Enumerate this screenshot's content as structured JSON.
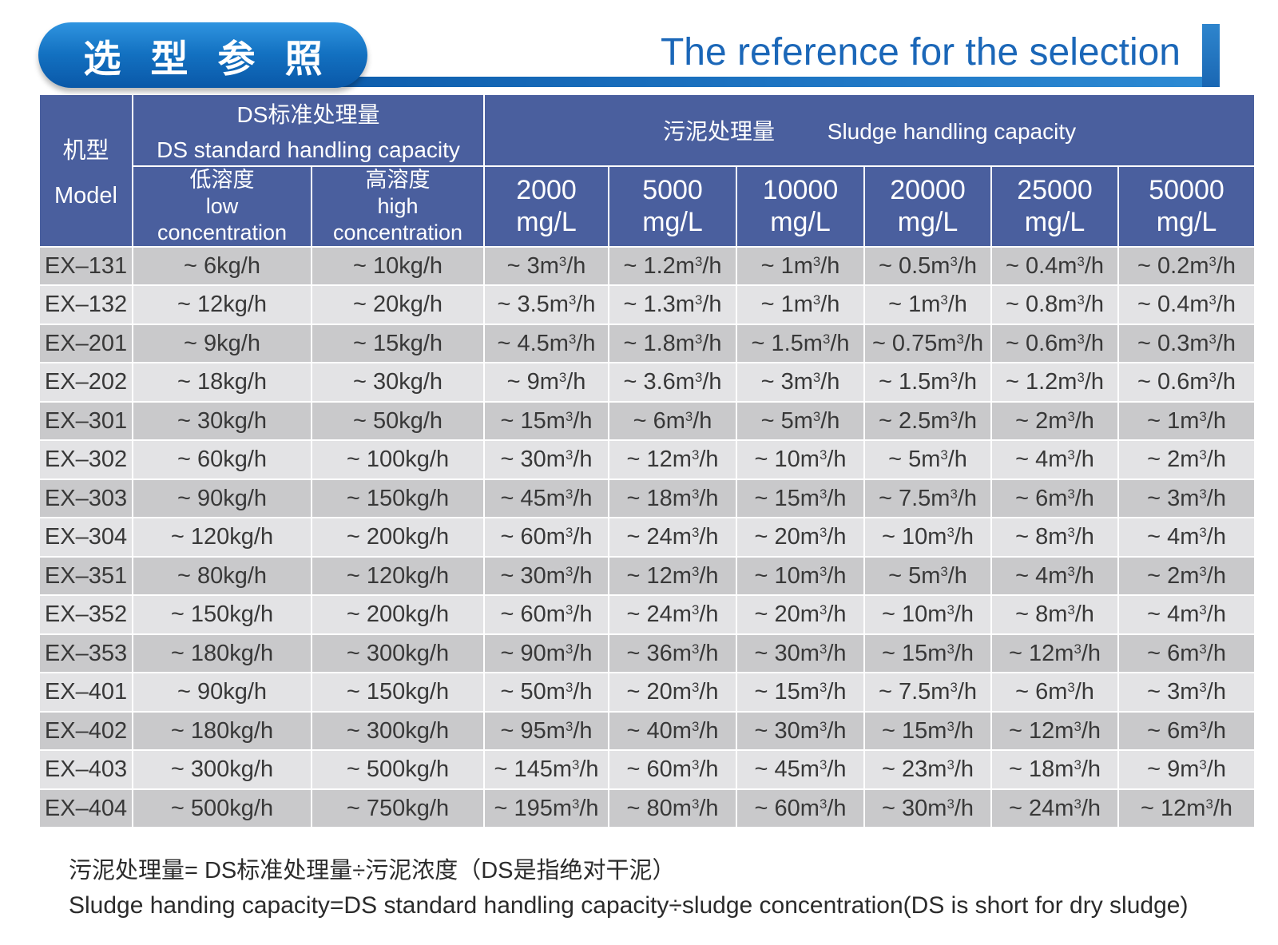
{
  "header": {
    "badge_title": "选 型 参 照",
    "title_en": "The reference for the selection"
  },
  "colors": {
    "badge_gradient_top": "#2f94e0",
    "badge_gradient_bottom": "#0a58a8",
    "title_blue": "#1b67b8",
    "table_header_blue": "#4a5f9e",
    "row_dark": "#c9c9cb",
    "row_light": "#e3e3e5",
    "cell_text": "#383838"
  },
  "table": {
    "model_header": {
      "zh": "机型",
      "en": "Model"
    },
    "ds_group": {
      "zh": "DS标准处理量",
      "en": "DS standard handling capacity"
    },
    "sludge_group": {
      "zh": "污泥处理量",
      "en": "Sludge handling capacity"
    },
    "sub_headers": [
      {
        "zh": "低溶度",
        "en1": "low",
        "en2": "concentration"
      },
      {
        "zh": "高溶度",
        "en1": "high",
        "en2": "concentration"
      }
    ],
    "concentrations": [
      {
        "value": "2000",
        "unit": "mg/L"
      },
      {
        "value": "5000",
        "unit": "mg/L"
      },
      {
        "value": "10000",
        "unit": "mg/L"
      },
      {
        "value": "20000",
        "unit": "mg/L"
      },
      {
        "value": "25000",
        "unit": "mg/L"
      },
      {
        "value": "50000",
        "unit": "mg/L"
      }
    ],
    "rows": [
      {
        "model": "EX–131",
        "low": "~ 6kg/h",
        "high": "~ 10kg/h",
        "capacities": [
          "~ 3m³/h",
          "~ 1.2m³/h",
          "~ 1m³/h",
          "~ 0.5m³/h",
          "~ 0.4m³/h",
          "~ 0.2m³/h"
        ]
      },
      {
        "model": "EX–132",
        "low": "~ 12kg/h",
        "high": "~ 20kg/h",
        "capacities": [
          "~ 3.5m³/h",
          "~ 1.3m³/h",
          "~ 1m³/h",
          "~ 1m³/h",
          "~ 0.8m³/h",
          "~ 0.4m³/h"
        ]
      },
      {
        "model": "EX–201",
        "low": "~ 9kg/h",
        "high": "~ 15kg/h",
        "capacities": [
          "~ 4.5m³/h",
          "~ 1.8m³/h",
          "~ 1.5m³/h",
          "~ 0.75m³/h",
          "~ 0.6m³/h",
          "~ 0.3m³/h"
        ]
      },
      {
        "model": "EX–202",
        "low": "~ 18kg/h",
        "high": "~ 30kg/h",
        "capacities": [
          "~ 9m³/h",
          "~ 3.6m³/h",
          "~ 3m³/h",
          "~ 1.5m³/h",
          "~ 1.2m³/h",
          "~ 0.6m³/h"
        ]
      },
      {
        "model": "EX–301",
        "low": "~ 30kg/h",
        "high": "~ 50kg/h",
        "capacities": [
          "~ 15m³/h",
          "~ 6m³/h",
          "~ 5m³/h",
          "~ 2.5m³/h",
          "~ 2m³/h",
          "~ 1m³/h"
        ]
      },
      {
        "model": "EX–302",
        "low": "~ 60kg/h",
        "high": "~ 100kg/h",
        "capacities": [
          "~ 30m³/h",
          "~ 12m³/h",
          "~ 10m³/h",
          "~ 5m³/h",
          "~ 4m³/h",
          "~ 2m³/h"
        ]
      },
      {
        "model": "EX–303",
        "low": "~ 90kg/h",
        "high": "~ 150kg/h",
        "capacities": [
          "~ 45m³/h",
          "~ 18m³/h",
          "~ 15m³/h",
          "~ 7.5m³/h",
          "~ 6m³/h",
          "~ 3m³/h"
        ]
      },
      {
        "model": "EX–304",
        "low": "~ 120kg/h",
        "high": "~ 200kg/h",
        "capacities": [
          "~ 60m³/h",
          "~ 24m³/h",
          "~ 20m³/h",
          "~ 10m³/h",
          "~ 8m³/h",
          "~ 4m³/h"
        ]
      },
      {
        "model": "EX–351",
        "low": "~ 80kg/h",
        "high": "~ 120kg/h",
        "capacities": [
          "~ 30m³/h",
          "~ 12m³/h",
          "~ 10m³/h",
          "~ 5m³/h",
          "~ 4m³/h",
          "~ 2m³/h"
        ]
      },
      {
        "model": "EX–352",
        "low": "~ 150kg/h",
        "high": "~ 200kg/h",
        "capacities": [
          "~ 60m³/h",
          "~ 24m³/h",
          "~ 20m³/h",
          "~ 10m³/h",
          "~ 8m³/h",
          "~ 4m³/h"
        ]
      },
      {
        "model": "EX–353",
        "low": "~ 180kg/h",
        "high": "~ 300kg/h",
        "capacities": [
          "~ 90m³/h",
          "~ 36m³/h",
          "~ 30m³/h",
          "~ 15m³/h",
          "~ 12m³/h",
          "~ 6m³/h"
        ]
      },
      {
        "model": "EX–401",
        "low": "~ 90kg/h",
        "high": "~ 150kg/h",
        "capacities": [
          "~ 50m³/h",
          "~ 20m³/h",
          "~ 15m³/h",
          "~ 7.5m³/h",
          "~ 6m³/h",
          "~ 3m³/h"
        ]
      },
      {
        "model": "EX–402",
        "low": "~ 180kg/h",
        "high": "~ 300kg/h",
        "capacities": [
          "~ 95m³/h",
          "~ 40m³/h",
          "~ 30m³/h",
          "~ 15m³/h",
          "~ 12m³/h",
          "~ 6m³/h"
        ]
      },
      {
        "model": "EX–403",
        "low": "~ 300kg/h",
        "high": "~ 500kg/h",
        "capacities": [
          "~ 145m³/h",
          "~ 60m³/h",
          "~ 45m³/h",
          "~ 23m³/h",
          "~ 18m³/h",
          "~ 9m³/h"
        ]
      },
      {
        "model": "EX–404",
        "low": "~ 500kg/h",
        "high": "~ 750kg/h",
        "capacities": [
          "~ 195m³/h",
          "~ 80m³/h",
          "~ 60m³/h",
          "~ 30m³/h",
          "~ 24m³/h",
          "~ 12m³/h"
        ]
      }
    ]
  },
  "footnotes": {
    "zh": "污泥处理量= DS标准处理量÷污泥浓度（DS是指绝对干泥）",
    "en": "Sludge handing capacity=DS standard handling capacity÷sludge concentration(DS is short for dry sludge)"
  }
}
